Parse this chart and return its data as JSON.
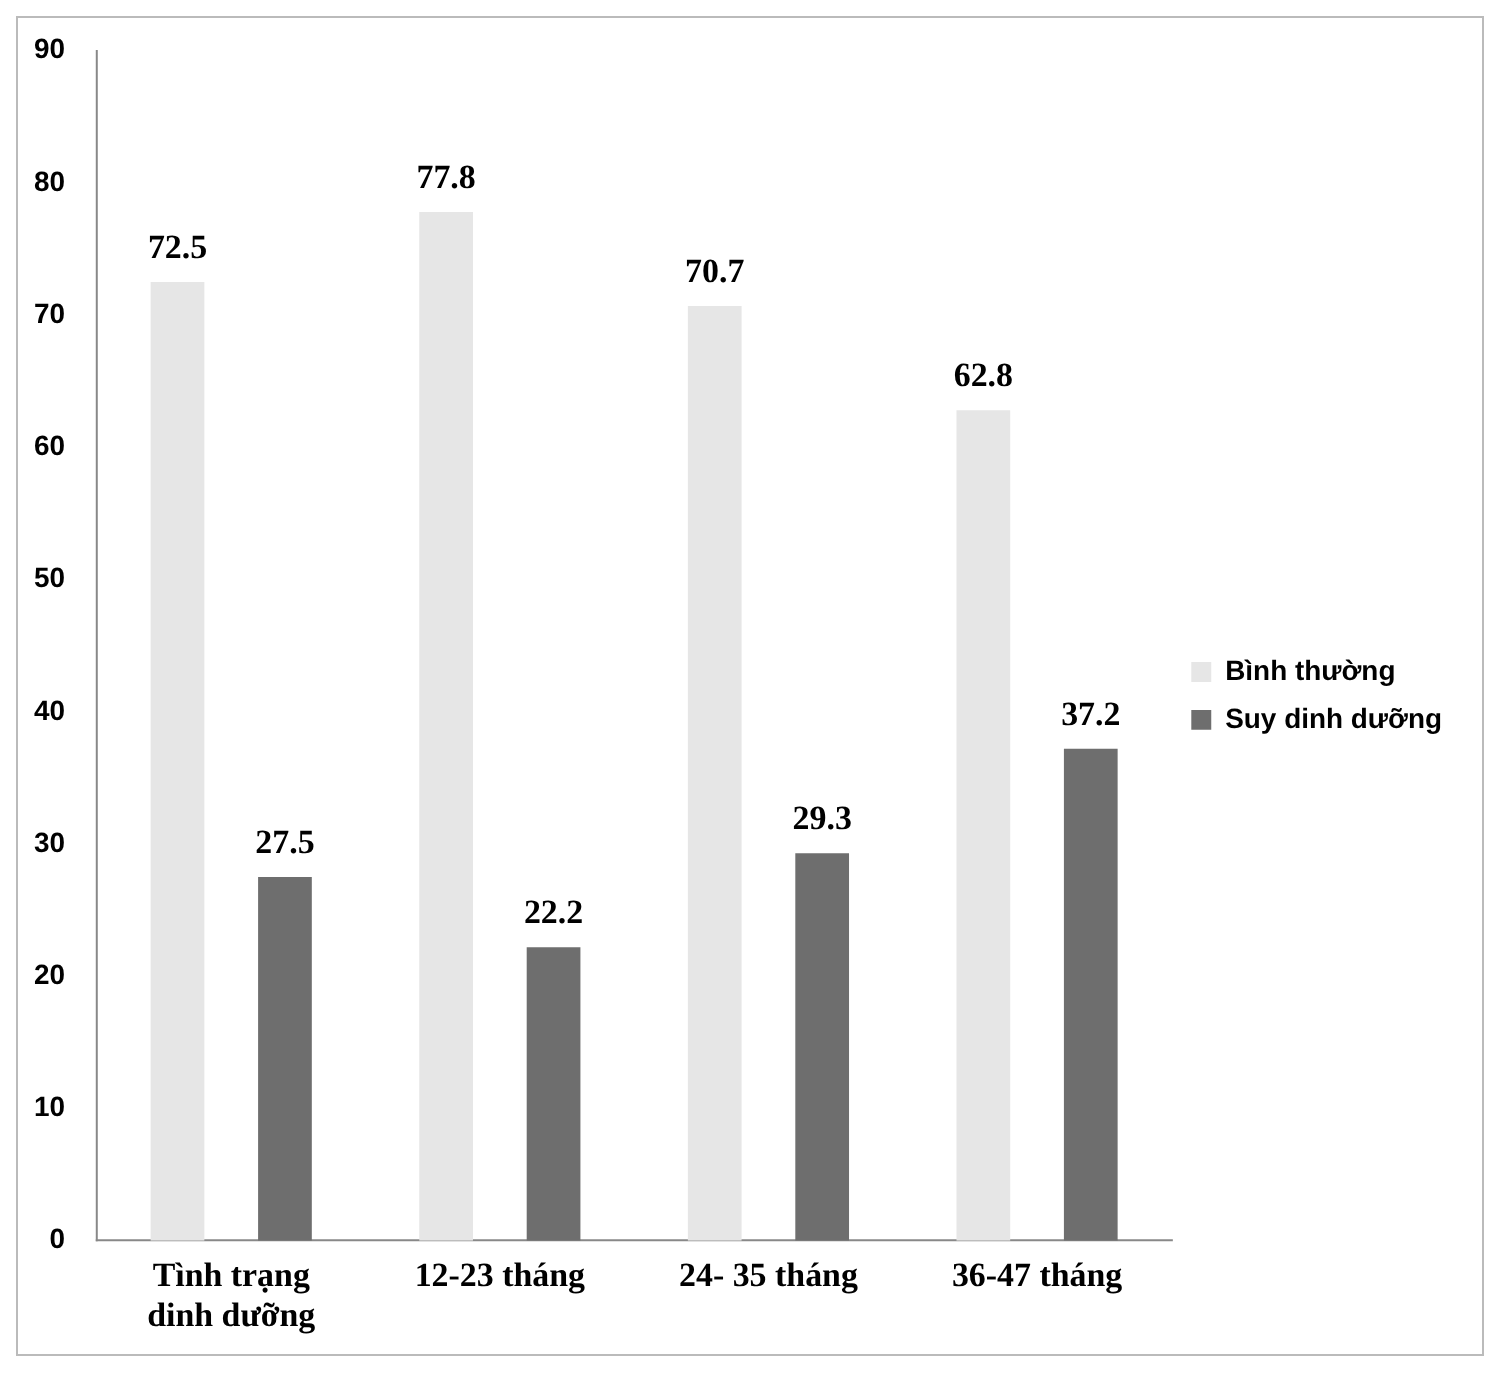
{
  "chart_data": {
    "type": "bar",
    "categories": [
      "Tình trạng dinh dưỡng",
      "12-23 tháng",
      "24- 35 tháng",
      "36-47 tháng"
    ],
    "series": [
      {
        "name": "Bình thường",
        "color": "#e6e6e6",
        "values": [
          72.5,
          77.8,
          70.7,
          62.8
        ]
      },
      {
        "name": "Suy dinh dưỡng",
        "color": "#6e6e6e",
        "values": [
          27.5,
          22.2,
          29.3,
          37.2
        ]
      }
    ],
    "ylim": [
      0,
      90
    ],
    "yticks": [
      0,
      10,
      20,
      30,
      40,
      50,
      60,
      70,
      80,
      90
    ],
    "grid": false,
    "legend": "right",
    "data_labels": true
  }
}
